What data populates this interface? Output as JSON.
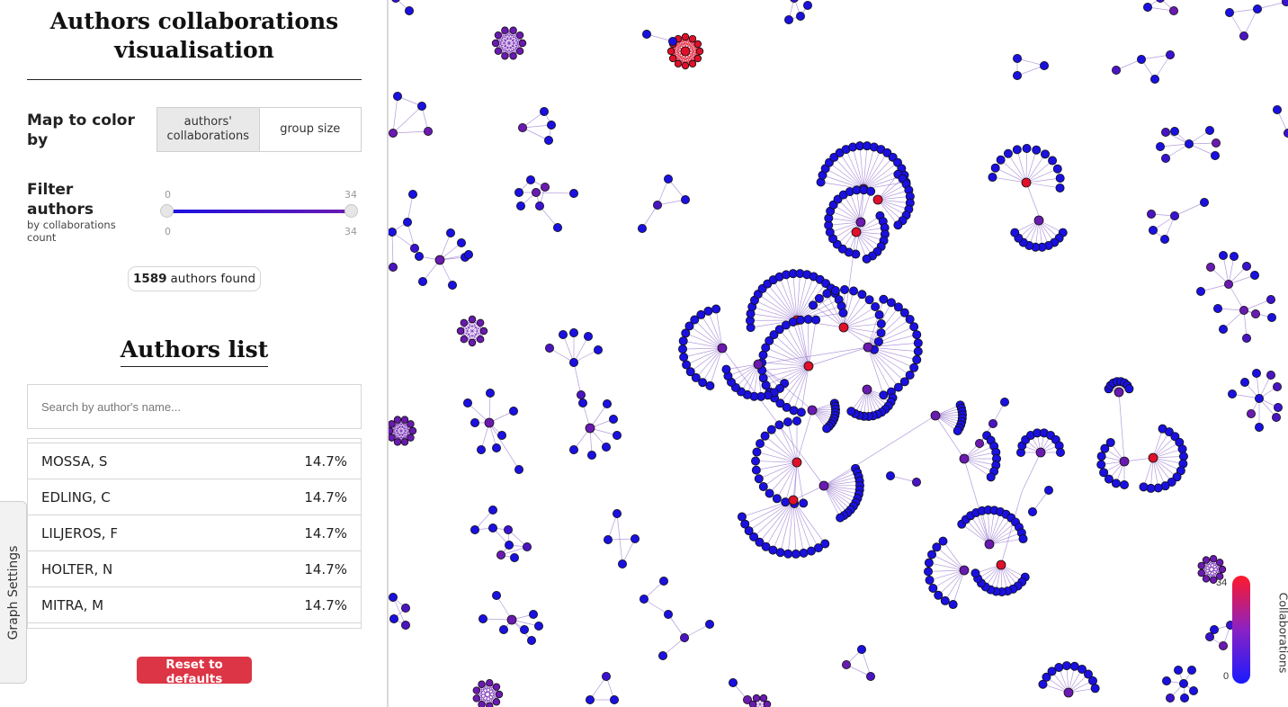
{
  "sidebar": {
    "title_line1": "Authors collaborations",
    "title_line2": "visualisation",
    "map_color_label": "Map to color by",
    "color_options": [
      "authors' collaborations",
      "group size"
    ],
    "filter_label": "Filter authors",
    "filter_sublabel": "by collaborations count",
    "slider": {
      "min": 0,
      "max": 34,
      "low": 0,
      "high": 34,
      "min_label": "0",
      "max_label": "34"
    },
    "found_count": "1589",
    "found_text": "authors found",
    "list_title": "Authors list",
    "search_placeholder": "Search by author's name...",
    "authors": [
      {
        "name": "MOSSA, S",
        "pct": "14.7%"
      },
      {
        "name": "EDLING, C",
        "pct": "14.7%"
      },
      {
        "name": "LILJEROS, F",
        "pct": "14.7%"
      },
      {
        "name": "HOLTER, N",
        "pct": "14.7%"
      },
      {
        "name": "MITRA, M",
        "pct": "14.7%"
      }
    ],
    "reset_label": "Reset to defaults",
    "settings_tab_label": "Graph Settings"
  },
  "legend": {
    "title": "Collaborations",
    "max_label": "34",
    "min_label": "0",
    "color_high": "#ff1a2a",
    "color_low": "#1a1aff"
  },
  "colors": {
    "node_low": "#1a10e0",
    "node_mid": "#6a1ab0",
    "node_high": "#e0102a",
    "edge": "#9a7ad0",
    "reset": "#dc3545"
  }
}
